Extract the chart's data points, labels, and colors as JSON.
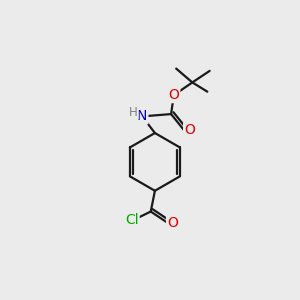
{
  "background_color": "#ebebeb",
  "bond_color": "#1a1a1a",
  "atom_colors": {
    "O": "#e00000",
    "N": "#0000cc",
    "Cl": "#00aa00",
    "C": "#1a1a1a",
    "H": "#808080"
  },
  "figsize": [
    3.0,
    3.0
  ],
  "dpi": 100,
  "lw": 1.6
}
